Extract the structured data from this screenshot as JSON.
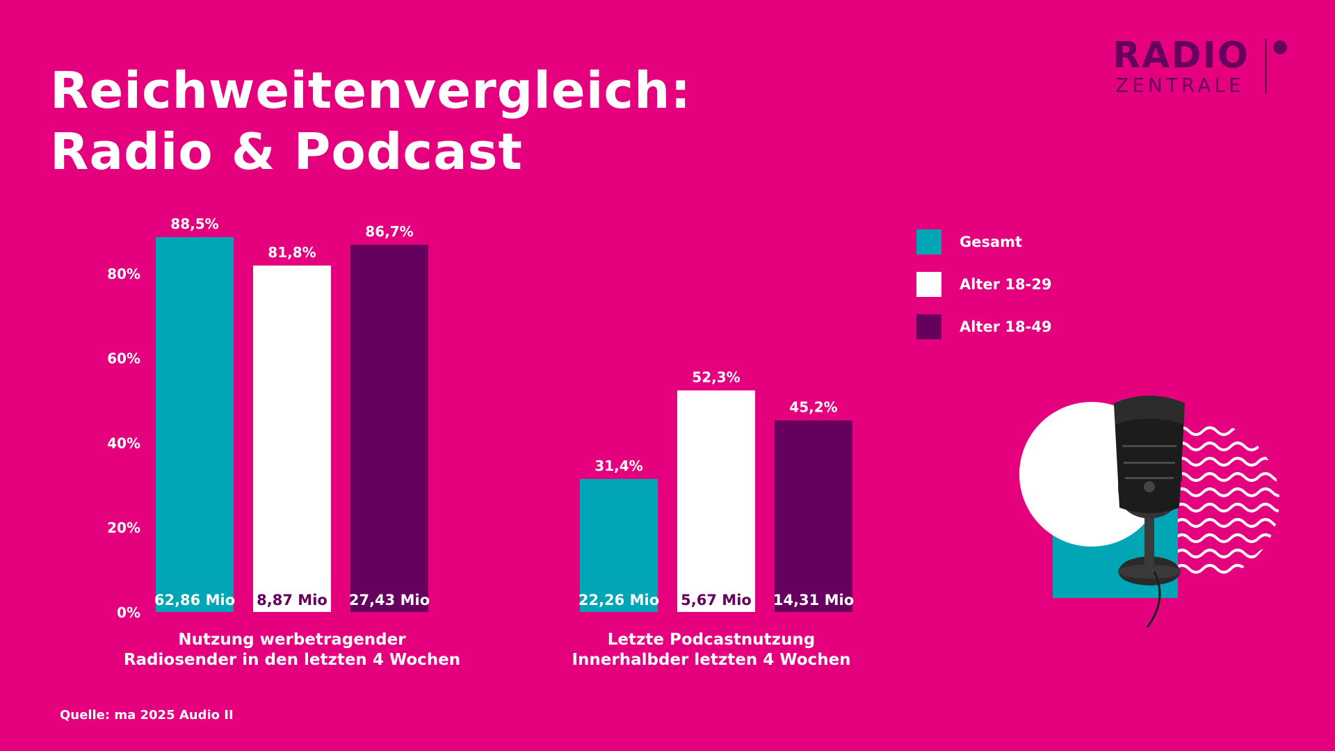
{
  "header": {
    "title_line_1": "Reichweitenvergleich:",
    "title_line_2": "Radio & Podcast"
  },
  "logo": {
    "word_1": "RADIO",
    "word_2": "ZENTRALE"
  },
  "colors": {
    "background": "#E5007E",
    "gesamt": "#00A6B6",
    "alter_18_29": "#FFFFFF",
    "alter_18_49": "#65005E",
    "text": "#FFFFFF"
  },
  "legend": {
    "placement": "top-right",
    "items": [
      {
        "label": "Gesamt",
        "color": "#00A6B6"
      },
      {
        "label": "Alter 18-29",
        "color": "#FFFFFF"
      },
      {
        "label": "Alter 18-49",
        "color": "#65005E"
      }
    ]
  },
  "groups": [
    {
      "label_line_1": "Nutzung werbetragender",
      "label_line_2": "Radiosender in den letzten 4 Wochen"
    },
    {
      "label_line_1": "Letzte Podcastnutzung",
      "label_line_2": "Innerhalbder letzten 4 Wochen"
    }
  ],
  "source": "Quelle: ma 2025 Audio II",
  "chart_data": {
    "type": "bar",
    "title": "Reichweitenvergleich: Radio & Podcast",
    "categories": [
      "Nutzung werbetragender Radiosender in den letzten 4 Wochen",
      "Letzte Podcastnutzung Innerhalbder letzten 4 Wochen"
    ],
    "ylim": [
      0,
      100
    ],
    "yticks": [
      0,
      20,
      40,
      60,
      80
    ],
    "ytick_labels": [
      "0%",
      "20%",
      "40%",
      "60%",
      "80%"
    ],
    "grid": false,
    "series": [
      {
        "name": "Gesamt",
        "values": [
          88.5,
          31.4
        ],
        "value_labels": [
          "88,5%",
          "31,4%"
        ],
        "base_labels": [
          "62,86 Mio",
          "22,26 Mio"
        ]
      },
      {
        "name": "Alter 18-29",
        "values": [
          81.8,
          52.3
        ],
        "value_labels": [
          "81,8%",
          "52,3%"
        ],
        "base_labels": [
          "8,87 Mio",
          "5,67 Mio"
        ]
      },
      {
        "name": "Alter 18-49",
        "values": [
          86.7,
          45.2
        ],
        "value_labels": [
          "86,7%",
          "45,2%"
        ],
        "base_labels": [
          "27,43 Mio",
          "14,31 Mio"
        ]
      }
    ]
  }
}
